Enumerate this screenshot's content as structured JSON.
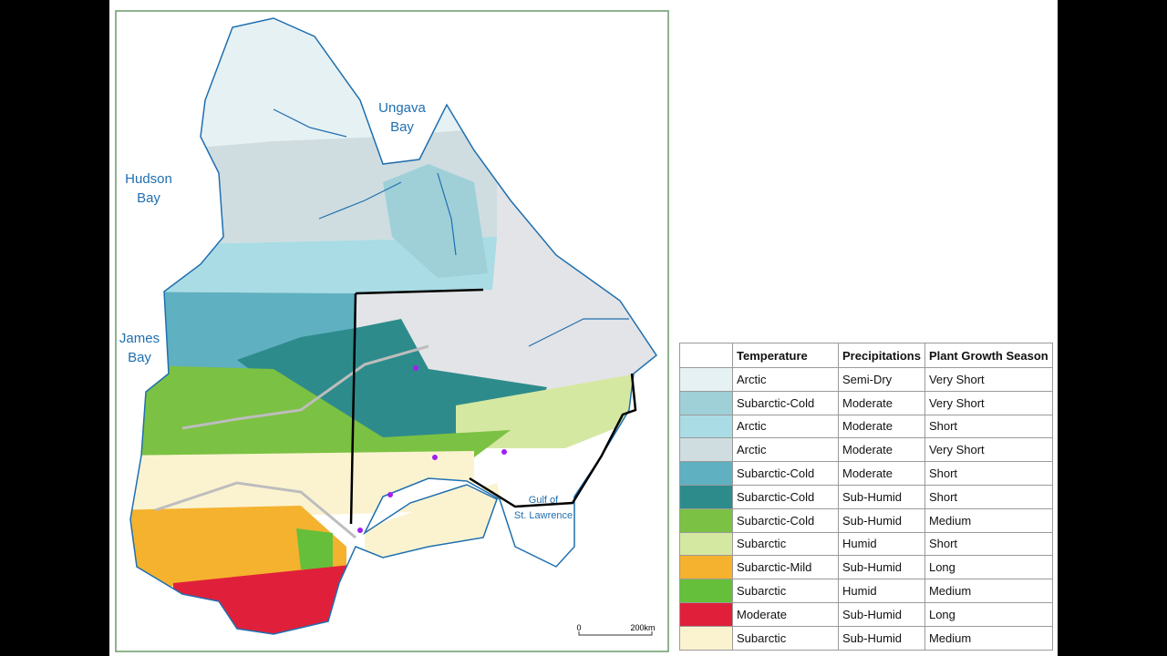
{
  "map": {
    "labels": [
      {
        "lines": [
          "Ungava",
          "Bay"
        ]
      },
      {
        "lines": [
          "Hudson",
          "Bay"
        ]
      },
      {
        "lines": [
          "James",
          "Bay"
        ]
      },
      {
        "lines": [
          "Gulf of",
          "St. Lawrence"
        ]
      }
    ],
    "scale": [
      "0",
      "200km"
    ]
  },
  "legend": {
    "headers": [
      "Temperature",
      "Precipitations",
      "Plant Growth Season"
    ],
    "rows": [
      {
        "color": "#e6f1f3",
        "temperature": "Arctic",
        "precipitation": "Semi-Dry",
        "season": "Very Short"
      },
      {
        "color": "#9fd0d8",
        "temperature": "Subarctic-Cold",
        "precipitation": "Moderate",
        "season": "Very Short"
      },
      {
        "color": "#a9dce4",
        "temperature": "Arctic",
        "precipitation": "Moderate",
        "season": "Short"
      },
      {
        "color": "#cfdde0",
        "temperature": "Arctic",
        "precipitation": "Moderate",
        "season": "Very Short"
      },
      {
        "color": "#5fb0c0",
        "temperature": "Subarctic-Cold",
        "precipitation": "Moderate",
        "season": "Short"
      },
      {
        "color": "#2e8b8c",
        "temperature": "Subarctic-Cold",
        "precipitation": "Sub-Humid",
        "season": "Short"
      },
      {
        "color": "#7bc143",
        "temperature": "Subarctic-Cold",
        "precipitation": "Sub-Humid",
        "season": "Medium"
      },
      {
        "color": "#d5e8a2",
        "temperature": "Subarctic",
        "precipitation": "Humid",
        "season": "Short"
      },
      {
        "color": "#f4b22e",
        "temperature": "Subarctic-Mild",
        "precipitation": "Sub-Humid",
        "season": "Long"
      },
      {
        "color": "#66bf3a",
        "temperature": "Subarctic",
        "precipitation": "Humid",
        "season": "Medium"
      },
      {
        "color": "#e0203a",
        "temperature": "Moderate",
        "precipitation": "Sub-Humid",
        "season": "Long"
      },
      {
        "color": "#fbf3d0",
        "temperature": "Subarctic",
        "precipitation": "Sub-Humid",
        "season": "Medium"
      }
    ]
  }
}
